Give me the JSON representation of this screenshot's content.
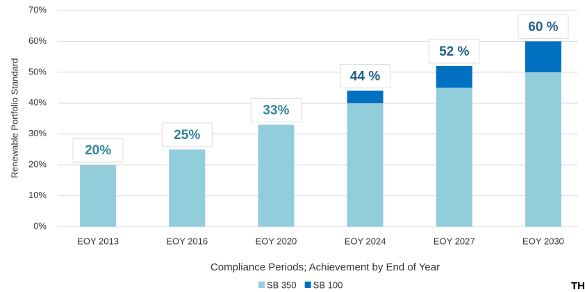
{
  "chart_data": {
    "type": "stacked_bar",
    "y_axis_label": "Renewable Portfolio Standard",
    "x_axis_label": "Compliance Periods; Achievement by End of Year",
    "categories": [
      "EOY 2013",
      "EOY 2016",
      "EOY 2020",
      "EOY 2024",
      "EOY 2027",
      "EOY 2030"
    ],
    "series": [
      {
        "name": "SB 350",
        "color": "#92cddc",
        "values": [
          20,
          25,
          33,
          40,
          45,
          50
        ]
      },
      {
        "name": "SB 100",
        "color": "#0070c0",
        "values": [
          0,
          0,
          0,
          4,
          7,
          10
        ]
      }
    ],
    "annotations": [
      {
        "text": "20%",
        "color": "#31849b"
      },
      {
        "text": "25%",
        "color": "#31849b"
      },
      {
        "text": "33%",
        "color": "#31849b"
      },
      {
        "text": "44 %",
        "color": "#1f5f8b"
      },
      {
        "text": "52 %",
        "color": "#1f5f8b"
      },
      {
        "text": "60 %",
        "color": "#1f5f8b"
      }
    ],
    "ylim": [
      0,
      70
    ],
    "yticks": [
      {
        "value": 0,
        "label": "0%"
      },
      {
        "value": 10,
        "label": "10%"
      },
      {
        "value": 20,
        "label": "20%"
      },
      {
        "value": 30,
        "label": "30%"
      },
      {
        "value": 40,
        "label": "40%"
      },
      {
        "value": 50,
        "label": "50%"
      },
      {
        "value": 60,
        "label": "60%"
      },
      {
        "value": 70,
        "label": "70%"
      }
    ],
    "grid": true,
    "legend": "bottom",
    "corner_text": "TH"
  }
}
